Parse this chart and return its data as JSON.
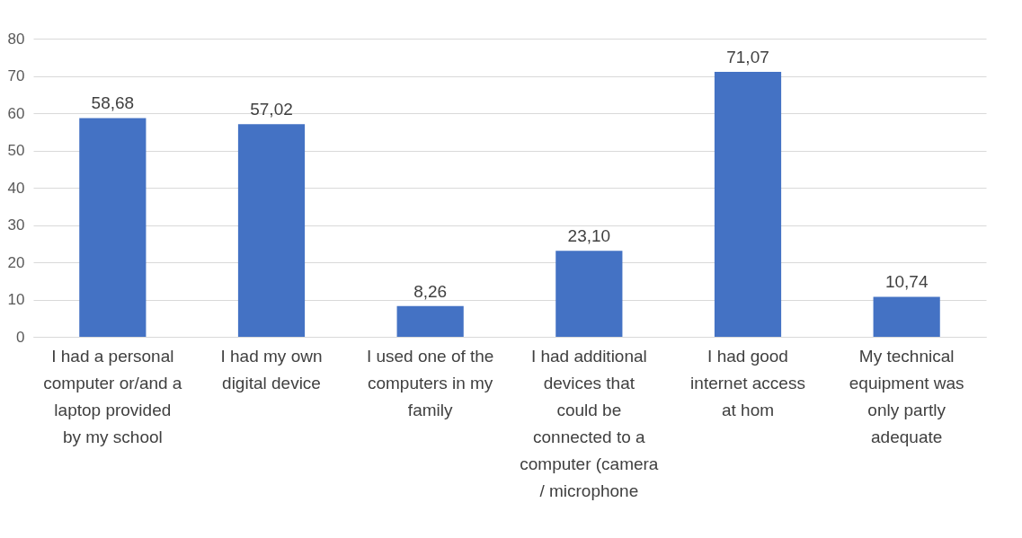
{
  "chart_data": {
    "type": "bar",
    "categories": [
      "I had a personal computer or/and a laptop provided by my school",
      "I had my own digital device",
      "I used one of the computers in my family",
      "I had additional devices that could be connected to a computer (camera / microphone",
      "I had good internet access at hom",
      "My technical equipment was only partly adequate"
    ],
    "values": [
      58.68,
      57.02,
      8.26,
      23.1,
      71.07,
      10.74
    ],
    "value_labels": [
      "58,68",
      "57,02",
      "8,26",
      "23,10",
      "71,07",
      "10,74"
    ],
    "color": "#4472c4",
    "ylim": [
      0,
      80
    ],
    "yticks": [
      0,
      10,
      20,
      30,
      40,
      50,
      60,
      70,
      80
    ],
    "grid": "y"
  }
}
